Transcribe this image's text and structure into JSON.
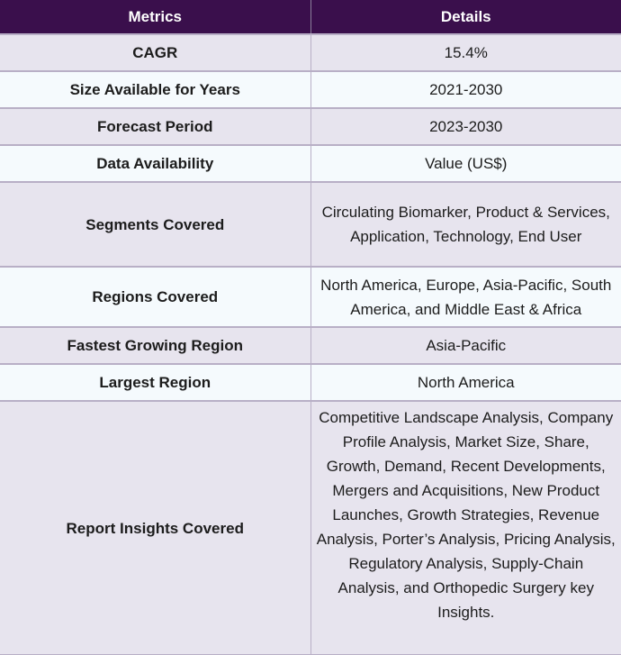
{
  "table": {
    "headers": [
      "Metrics",
      "Details"
    ],
    "rows": [
      {
        "metric": "CAGR",
        "detail": "15.4%"
      },
      {
        "metric": "Size Available for Years",
        "detail": "2021-2030"
      },
      {
        "metric": "Forecast Period",
        "detail": "2023-2030"
      },
      {
        "metric": "Data Availability",
        "detail": "Value (US$)"
      },
      {
        "metric": "Segments Covered",
        "detail": "Circulating Biomarker, Product & Services, Application, Technology, End User"
      },
      {
        "metric": "Regions Covered",
        "detail": "North America, Europe, Asia-Pacific, South America, and Middle East & Africa"
      },
      {
        "metric": "Fastest Growing Region",
        "detail": "Asia-Pacific"
      },
      {
        "metric": "Largest Region",
        "detail": "North America"
      },
      {
        "metric": "Report Insights Covered",
        "detail": "Competitive Landscape Analysis, Company Profile Analysis, Market Size, Share, Growth, Demand, Recent Developments, Mergers and Acquisitions, New Product Launches, Growth Strategies, Revenue Analysis, Porter’s Analysis, Pricing Analysis, Regulatory Analysis, Supply-Chain Analysis, and Orthopedic Surgery key Insights."
      }
    ]
  }
}
